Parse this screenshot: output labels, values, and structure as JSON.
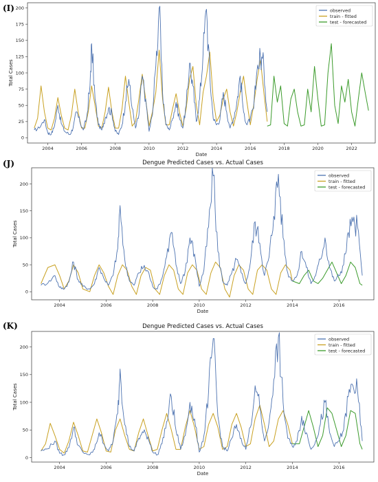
{
  "colors": {
    "observed": "#4c72b0",
    "train": "#c8a020",
    "test": "#3a9a2a"
  },
  "chart_data": [
    {
      "panel_label": "(I)",
      "type": "line",
      "title": "",
      "xlabel": "Date",
      "ylabel": "Total Cases",
      "xlim": [
        2002.8,
        2023.4
      ],
      "ylim": [
        -8,
        208
      ],
      "xticks": [
        2004,
        2006,
        2008,
        2010,
        2012,
        2014,
        2016,
        2018,
        2020,
        2022
      ],
      "yticks": [
        0,
        25,
        50,
        75,
        100,
        125,
        150,
        175,
        200
      ],
      "legend": [
        "observed",
        "train - fitted",
        "test - forecasted"
      ],
      "legend_position": "top-right",
      "series": [
        {
          "name": "observed",
          "key": "observed",
          "x": [
            2003.2,
            2003.5,
            2003.8,
            2004.0,
            2004.2,
            2004.4,
            2004.6,
            2004.8,
            2005.0,
            2005.3,
            2005.5,
            2005.7,
            2005.9,
            2006.1,
            2006.3,
            2006.5,
            2006.6,
            2006.8,
            2007.0,
            2007.2,
            2007.4,
            2007.6,
            2007.8,
            2008.0,
            2008.2,
            2008.4,
            2008.6,
            2008.8,
            2009.0,
            2009.2,
            2009.4,
            2009.6,
            2009.8,
            2010.0,
            2010.2,
            2010.4,
            2010.6,
            2010.8,
            2011.0,
            2011.2,
            2011.4,
            2011.6,
            2011.8,
            2012.0,
            2012.2,
            2012.4,
            2012.6,
            2012.8,
            2013.0,
            2013.2,
            2013.4,
            2013.6,
            2013.8,
            2014.0,
            2014.2,
            2014.4,
            2014.6,
            2014.8,
            2015.0,
            2015.2,
            2015.4,
            2015.6,
            2015.8,
            2016.0,
            2016.2,
            2016.4,
            2016.6,
            2016.8,
            2017.0
          ],
          "y": [
            12,
            15,
            28,
            8,
            5,
            18,
            50,
            22,
            10,
            5,
            15,
            40,
            25,
            12,
            30,
            80,
            145,
            60,
            20,
            12,
            30,
            45,
            38,
            10,
            5,
            20,
            55,
            90,
            45,
            15,
            35,
            95,
            60,
            10,
            35,
            110,
            200,
            70,
            20,
            12,
            30,
            55,
            30,
            15,
            50,
            115,
            80,
            25,
            60,
            130,
            198,
            95,
            30,
            20,
            28,
            70,
            40,
            15,
            30,
            55,
            95,
            40,
            20,
            30,
            45,
            105,
            125,
            110,
            40
          ],
          "dense": true
        },
        {
          "name": "train - fitted",
          "key": "train",
          "x": [
            2003.2,
            2003.4,
            2003.6,
            2003.8,
            2004.0,
            2004.2,
            2004.4,
            2004.6,
            2004.8,
            2005.0,
            2005.2,
            2005.4,
            2005.6,
            2005.8,
            2006.0,
            2006.2,
            2006.4,
            2006.6,
            2006.8,
            2007.0,
            2007.2,
            2007.4,
            2007.6,
            2007.8,
            2008.0,
            2008.2,
            2008.4,
            2008.6,
            2008.8,
            2009.0,
            2009.2,
            2009.4,
            2009.6,
            2009.8,
            2010.0,
            2010.2,
            2010.4,
            2010.6,
            2010.8,
            2011.0,
            2011.2,
            2011.4,
            2011.6,
            2011.8,
            2012.0,
            2012.2,
            2012.4,
            2012.6,
            2012.8,
            2013.0,
            2013.2,
            2013.4,
            2013.6,
            2013.8,
            2014.0,
            2014.2,
            2014.4,
            2014.6,
            2014.8,
            2015.0,
            2015.2,
            2015.4,
            2015.6,
            2015.8,
            2016.0,
            2016.2,
            2016.4,
            2016.6,
            2016.8,
            2017.0
          ],
          "y": [
            15,
            30,
            80,
            40,
            15,
            12,
            30,
            62,
            35,
            15,
            12,
            35,
            75,
            40,
            15,
            15,
            40,
            80,
            50,
            18,
            15,
            40,
            78,
            40,
            15,
            15,
            45,
            95,
            55,
            18,
            25,
            60,
            98,
            60,
            18,
            40,
            70,
            135,
            60,
            20,
            20,
            45,
            68,
            40,
            18,
            45,
            90,
            110,
            50,
            20,
            70,
            95,
            132,
            60,
            25,
            35,
            60,
            75,
            40,
            18,
            40,
            70,
            95,
            55,
            20,
            50,
            90,
            120,
            70,
            25
          ]
        },
        {
          "name": "test - forecasted",
          "key": "test",
          "x": [
            2017.0,
            2017.2,
            2017.4,
            2017.6,
            2017.8,
            2018.0,
            2018.2,
            2018.4,
            2018.6,
            2018.8,
            2019.0,
            2019.2,
            2019.4,
            2019.6,
            2019.8,
            2020.0,
            2020.2,
            2020.4,
            2020.6,
            2020.8,
            2021.0,
            2021.2,
            2021.4,
            2021.6,
            2021.8,
            2022.0,
            2022.2,
            2022.4,
            2022.6,
            2022.8,
            2023.0
          ],
          "y": [
            18,
            20,
            95,
            55,
            80,
            22,
            18,
            60,
            75,
            40,
            18,
            20,
            75,
            40,
            110,
            60,
            18,
            20,
            100,
            145,
            50,
            22,
            80,
            55,
            90,
            40,
            18,
            60,
            100,
            70,
            42
          ]
        }
      ]
    },
    {
      "panel_label": "(J)",
      "type": "line",
      "title": "Dengue Predicted Cases vs. Actual Cases",
      "xlabel": "Date",
      "ylabel": "Total Cases",
      "xlim": [
        2002.8,
        2017.5
      ],
      "ylim": [
        -15,
        230
      ],
      "xticks": [
        2004,
        2006,
        2008,
        2010,
        2012,
        2014,
        2016
      ],
      "yticks": [
        0,
        50,
        100,
        150,
        200
      ],
      "legend": [
        "observed",
        "train - fitted",
        "test - forecasted"
      ],
      "legend_position": "top-right",
      "series": [
        {
          "name": "observed",
          "key": "observed",
          "x": [
            2003.2,
            2003.5,
            2003.8,
            2004.0,
            2004.2,
            2004.4,
            2004.6,
            2004.8,
            2005.0,
            2005.3,
            2005.5,
            2005.7,
            2005.9,
            2006.1,
            2006.3,
            2006.5,
            2006.6,
            2006.8,
            2007.0,
            2007.2,
            2007.4,
            2007.6,
            2007.8,
            2008.0,
            2008.2,
            2008.4,
            2008.6,
            2008.8,
            2009.0,
            2009.2,
            2009.4,
            2009.6,
            2009.8,
            2010.0,
            2010.2,
            2010.4,
            2010.6,
            2010.8,
            2011.0,
            2011.2,
            2011.4,
            2011.6,
            2011.8,
            2012.0,
            2012.2,
            2012.4,
            2012.6,
            2012.8,
            2013.0,
            2013.2,
            2013.4,
            2013.6,
            2013.8,
            2014.0,
            2014.2,
            2014.4,
            2014.6,
            2014.8,
            2015.0,
            2015.2,
            2015.4,
            2015.6,
            2015.8,
            2016.0,
            2016.2,
            2016.4,
            2016.6,
            2016.8,
            2017.0
          ],
          "y": [
            12,
            16,
            30,
            8,
            5,
            18,
            55,
            22,
            10,
            5,
            15,
            45,
            25,
            12,
            30,
            80,
            160,
            60,
            20,
            12,
            35,
            45,
            38,
            10,
            5,
            25,
            65,
            110,
            50,
            15,
            40,
            100,
            70,
            10,
            40,
            120,
            215,
            75,
            20,
            12,
            35,
            60,
            35,
            15,
            55,
            130,
            90,
            30,
            65,
            140,
            218,
            100,
            35,
            20,
            30,
            75,
            45,
            15,
            30,
            60,
            100,
            45,
            20,
            30,
            50,
            110,
            130,
            120,
            30
          ],
          "dense": true
        },
        {
          "name": "train - fitted",
          "key": "train",
          "x": [
            2003.2,
            2003.5,
            2003.8,
            2004.0,
            2004.2,
            2004.4,
            2004.6,
            2004.8,
            2005.0,
            2005.3,
            2005.5,
            2005.7,
            2005.9,
            2006.1,
            2006.3,
            2006.5,
            2006.7,
            2006.9,
            2007.1,
            2007.3,
            2007.5,
            2007.7,
            2007.9,
            2008.1,
            2008.3,
            2008.5,
            2008.7,
            2008.9,
            2009.1,
            2009.3,
            2009.5,
            2009.7,
            2009.9,
            2010.1,
            2010.3,
            2010.5,
            2010.7,
            2010.9,
            2011.1,
            2011.3,
            2011.5,
            2011.7,
            2011.9,
            2012.1,
            2012.3,
            2012.5,
            2012.7,
            2012.9,
            2013.1,
            2013.3,
            2013.5,
            2013.7,
            2013.9,
            2014.0
          ],
          "y": [
            15,
            45,
            50,
            30,
            5,
            20,
            50,
            35,
            5,
            0,
            30,
            50,
            35,
            10,
            -5,
            30,
            50,
            40,
            10,
            -5,
            30,
            45,
            40,
            5,
            -5,
            30,
            50,
            40,
            5,
            -5,
            35,
            50,
            40,
            5,
            -5,
            35,
            55,
            45,
            5,
            -10,
            30,
            50,
            40,
            5,
            -5,
            40,
            50,
            40,
            5,
            -5,
            35,
            50,
            40,
            20
          ]
        },
        {
          "name": "test - forecasted",
          "key": "test",
          "x": [
            2014.0,
            2014.3,
            2014.5,
            2014.7,
            2014.9,
            2015.1,
            2015.3,
            2015.5,
            2015.7,
            2015.9,
            2016.1,
            2016.3,
            2016.5,
            2016.7,
            2016.9,
            2017.0
          ],
          "y": [
            20,
            15,
            30,
            40,
            20,
            15,
            25,
            40,
            55,
            35,
            15,
            30,
            55,
            45,
            15,
            12
          ]
        }
      ]
    },
    {
      "panel_label": "(K)",
      "type": "line",
      "title": "Dengue Predicted Cases vs. Actual Cases",
      "xlabel": "Date",
      "ylabel": "Total Cases",
      "xlim": [
        2002.8,
        2017.5
      ],
      "ylim": [
        -8,
        228
      ],
      "xticks": [
        2004,
        2006,
        2008,
        2010,
        2012,
        2014,
        2016
      ],
      "yticks": [
        0,
        50,
        100,
        150,
        200
      ],
      "legend": [
        "observed",
        "train - fitted",
        "test - forecasted"
      ],
      "legend_position": "top-right",
      "series": [
        {
          "name": "observed",
          "key": "observed",
          "x": [
            2003.2,
            2003.5,
            2003.8,
            2004.0,
            2004.2,
            2004.4,
            2004.6,
            2004.8,
            2005.0,
            2005.3,
            2005.5,
            2005.7,
            2005.9,
            2006.1,
            2006.3,
            2006.5,
            2006.6,
            2006.8,
            2007.0,
            2007.2,
            2007.4,
            2007.6,
            2007.8,
            2008.0,
            2008.2,
            2008.4,
            2008.6,
            2008.8,
            2009.0,
            2009.2,
            2009.4,
            2009.6,
            2009.8,
            2010.0,
            2010.2,
            2010.4,
            2010.6,
            2010.8,
            2011.0,
            2011.2,
            2011.4,
            2011.6,
            2011.8,
            2012.0,
            2012.2,
            2012.4,
            2012.6,
            2012.8,
            2013.0,
            2013.2,
            2013.4,
            2013.6,
            2013.8,
            2014.0,
            2014.2,
            2014.4,
            2014.6,
            2014.8,
            2015.0,
            2015.2,
            2015.4,
            2015.6,
            2015.8,
            2016.0,
            2016.2,
            2016.4,
            2016.6,
            2016.8,
            2017.0
          ],
          "y": [
            12,
            16,
            30,
            8,
            5,
            18,
            55,
            22,
            10,
            5,
            15,
            45,
            25,
            12,
            30,
            80,
            160,
            60,
            20,
            12,
            35,
            45,
            38,
            10,
            5,
            25,
            65,
            110,
            50,
            15,
            40,
            100,
            70,
            10,
            40,
            120,
            215,
            75,
            20,
            12,
            35,
            60,
            35,
            15,
            55,
            130,
            90,
            30,
            65,
            140,
            218,
            100,
            35,
            20,
            30,
            75,
            45,
            15,
            30,
            60,
            100,
            45,
            20,
            30,
            50,
            110,
            130,
            120,
            30
          ],
          "dense": true
        },
        {
          "name": "train - fitted",
          "key": "train",
          "x": [
            2003.2,
            2003.4,
            2003.6,
            2003.8,
            2004.0,
            2004.2,
            2004.4,
            2004.6,
            2004.8,
            2005.0,
            2005.2,
            2005.4,
            2005.6,
            2005.8,
            2006.0,
            2006.2,
            2006.4,
            2006.6,
            2006.8,
            2007.0,
            2007.2,
            2007.4,
            2007.6,
            2007.8,
            2008.0,
            2008.2,
            2008.4,
            2008.6,
            2008.8,
            2009.0,
            2009.2,
            2009.4,
            2009.6,
            2009.8,
            2010.0,
            2010.2,
            2010.4,
            2010.6,
            2010.8,
            2011.0,
            2011.2,
            2011.4,
            2011.6,
            2011.8,
            2012.0,
            2012.2,
            2012.4,
            2012.6,
            2012.8,
            2013.0,
            2013.2,
            2013.4,
            2013.6,
            2013.8,
            2014.0
          ],
          "y": [
            12,
            25,
            62,
            40,
            15,
            8,
            30,
            64,
            40,
            12,
            10,
            40,
            70,
            45,
            12,
            10,
            50,
            70,
            40,
            15,
            12,
            45,
            70,
            40,
            12,
            15,
            50,
            80,
            50,
            15,
            15,
            55,
            85,
            55,
            15,
            20,
            60,
            80,
            55,
            15,
            20,
            60,
            80,
            55,
            20,
            25,
            70,
            95,
            60,
            20,
            30,
            70,
            85,
            60,
            25
          ]
        },
        {
          "name": "test - forecasted",
          "key": "test",
          "x": [
            2014.0,
            2014.3,
            2014.5,
            2014.7,
            2014.9,
            2015.1,
            2015.3,
            2015.5,
            2015.7,
            2015.9,
            2016.1,
            2016.3,
            2016.5,
            2016.7,
            2016.9,
            2017.0
          ],
          "y": [
            25,
            25,
            55,
            85,
            55,
            20,
            40,
            90,
            80,
            50,
            20,
            40,
            85,
            80,
            25,
            15
          ]
        }
      ]
    }
  ]
}
